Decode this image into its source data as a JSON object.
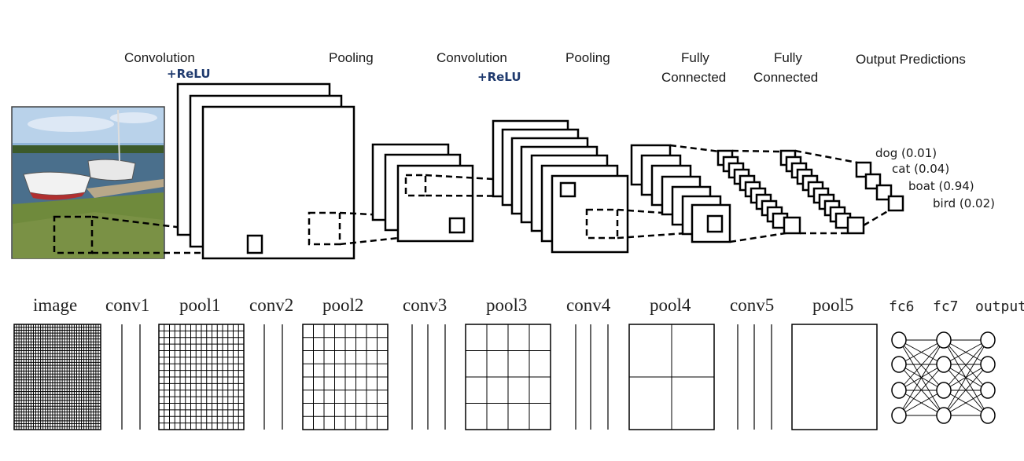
{
  "top_diagram": {
    "stages": [
      {
        "id": "conv1",
        "label": "Convolution",
        "sublabel": "+ReLU"
      },
      {
        "id": "pool1",
        "label": "Pooling"
      },
      {
        "id": "conv2",
        "label": "Convolution",
        "sublabel": "+ReLU"
      },
      {
        "id": "pool2",
        "label": "Pooling"
      },
      {
        "id": "fc1",
        "label_lines": [
          "Fully",
          "Connected"
        ]
      },
      {
        "id": "fc2",
        "label_lines": [
          "Fully",
          "Connected"
        ]
      },
      {
        "id": "out",
        "label": "Output Predictions"
      }
    ],
    "predictions": [
      {
        "label": "dog (0.01)"
      },
      {
        "label": "cat (0.04)"
      },
      {
        "label": "boat (0.94)"
      },
      {
        "label": "bird (0.02)"
      }
    ]
  },
  "bottom_diagram": {
    "layers": [
      "image",
      "conv1",
      "pool1",
      "conv2",
      "pool2",
      "conv3",
      "pool3",
      "conv4",
      "pool4",
      "conv5",
      "pool5"
    ],
    "fc_layers": [
      "fc6",
      "fc7",
      "output"
    ]
  },
  "colors": {
    "relu_text": "#1f3a6e",
    "sky": "#8fb4d8",
    "water": "#4a6f8c",
    "grass": "#6f8a3c"
  }
}
